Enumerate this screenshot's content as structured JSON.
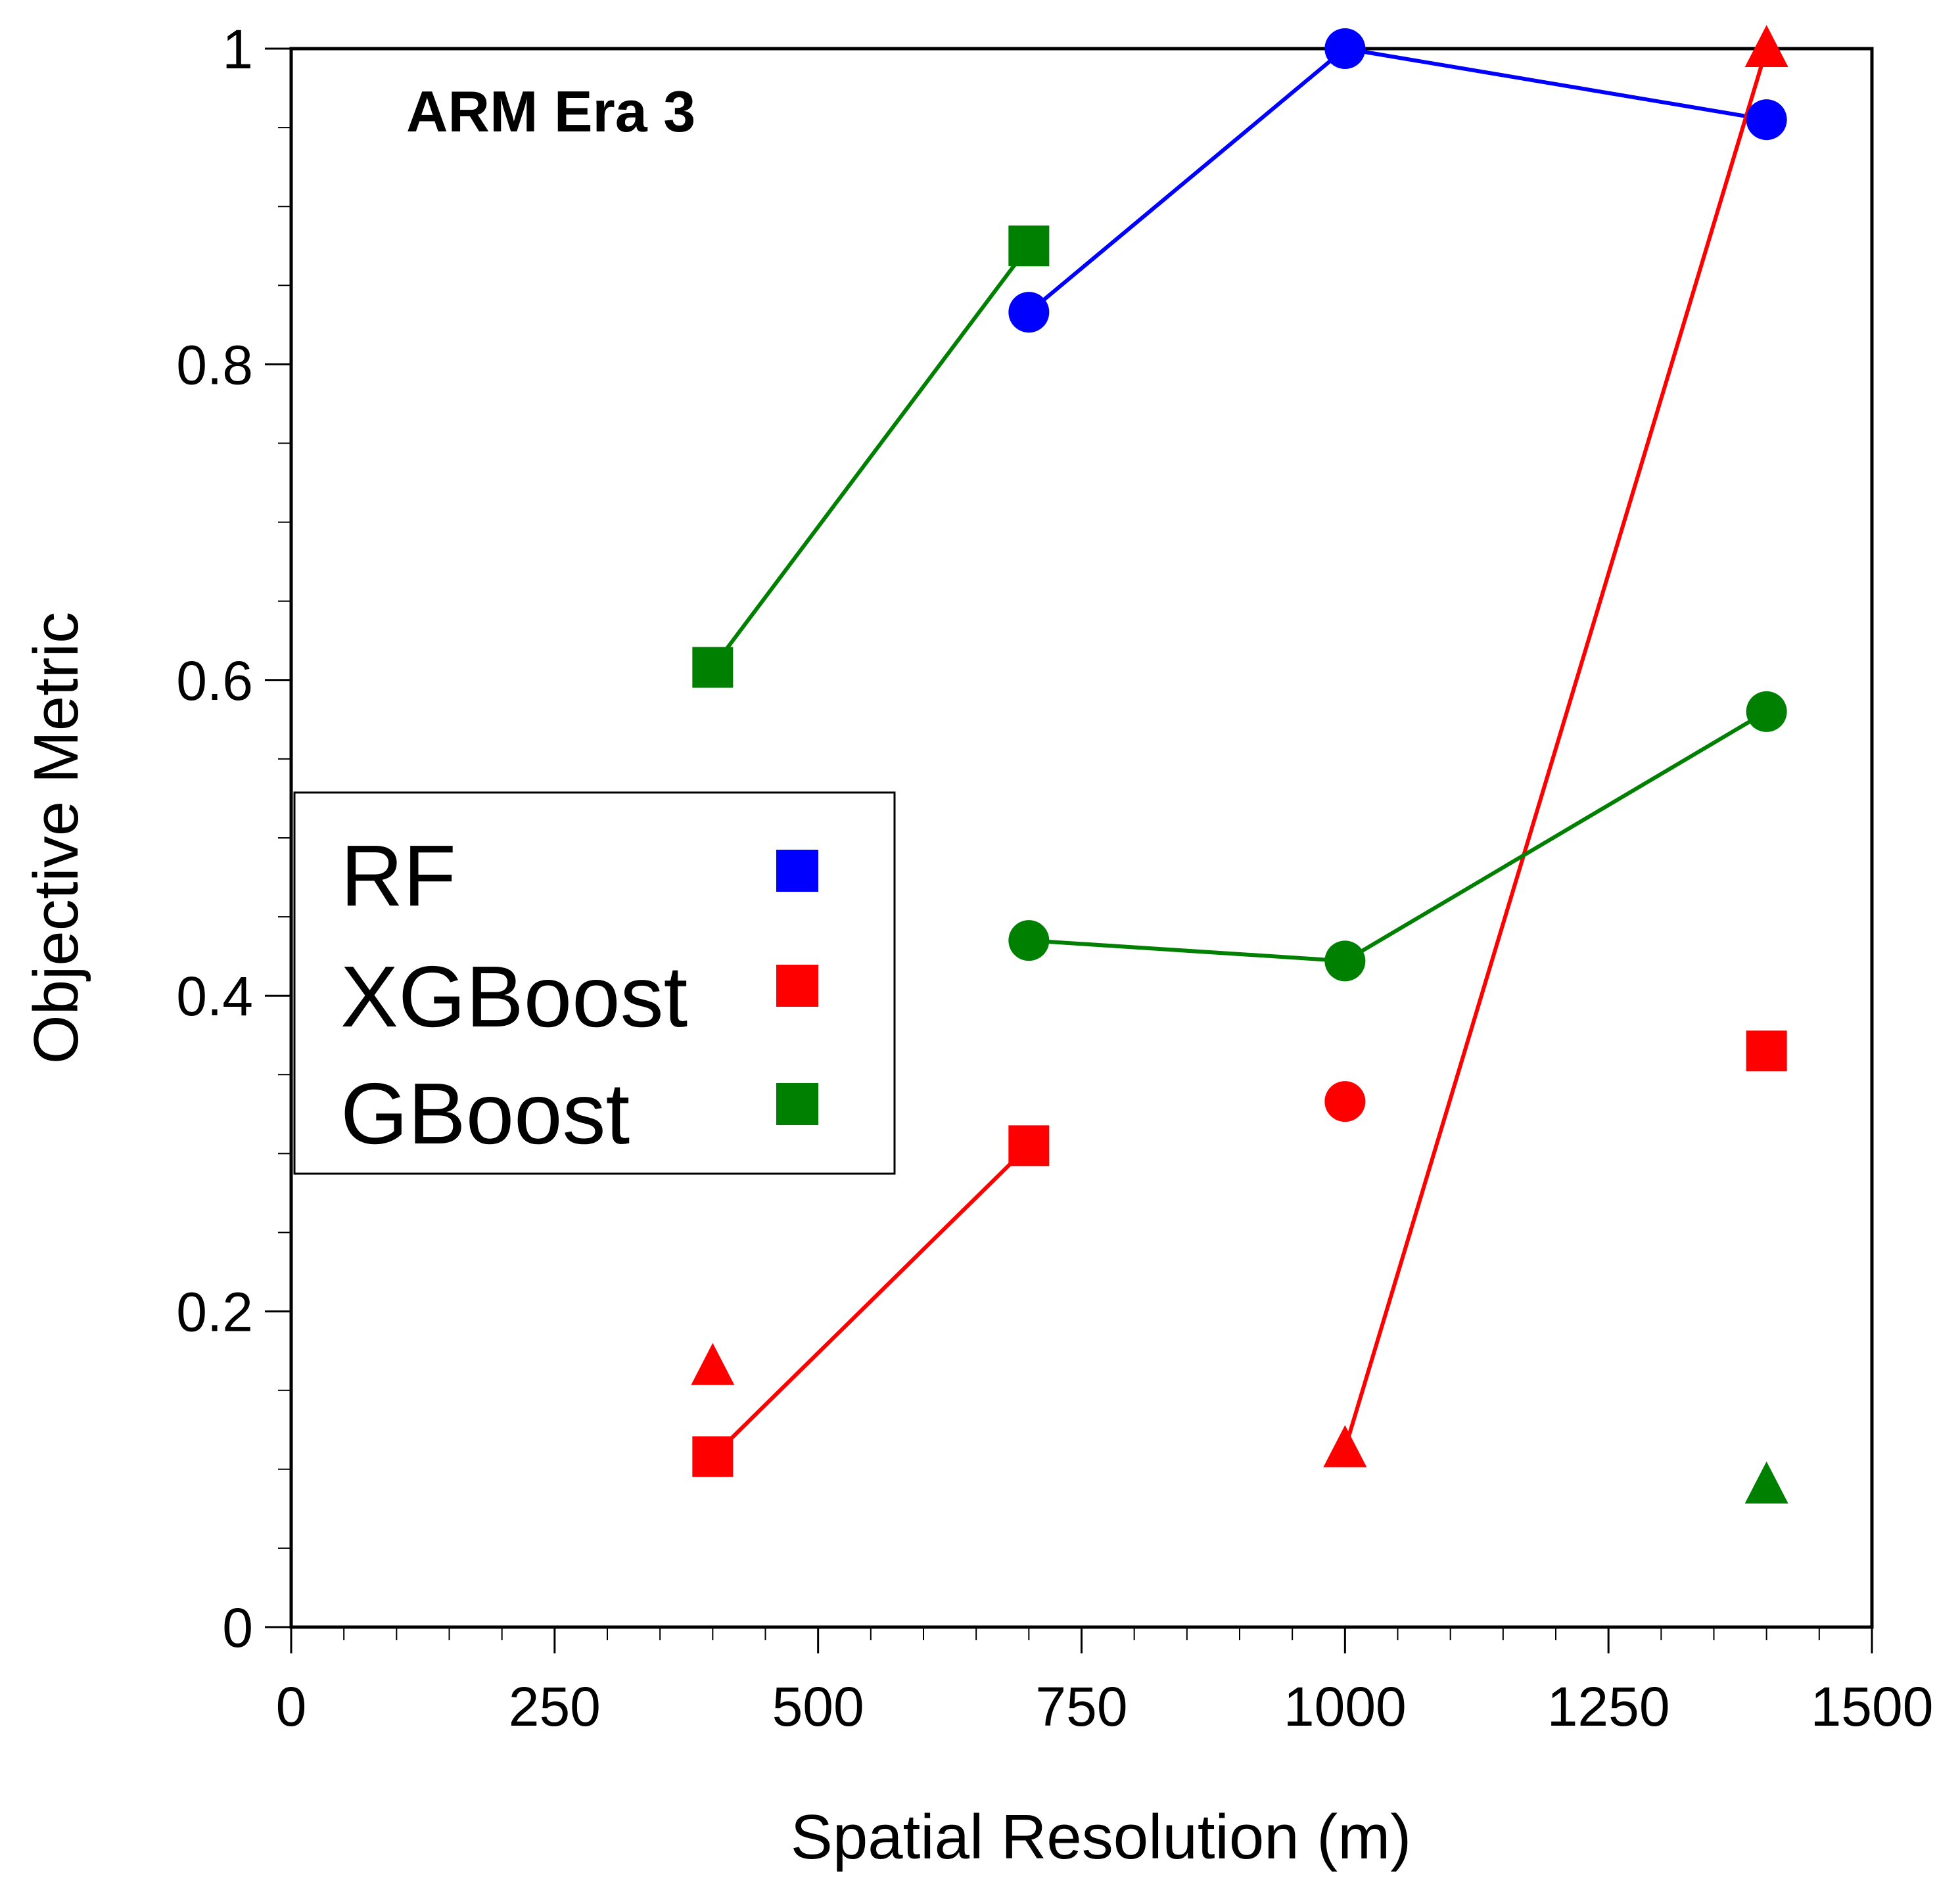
{
  "chart_data": {
    "type": "scatter",
    "title": "ARM Era 3",
    "xlabel": "Spatial Resolution (m)",
    "ylabel": "Objective Metric",
    "xlim": [
      0,
      1500
    ],
    "ylim": [
      0,
      1
    ],
    "x_ticks": [
      0,
      250,
      500,
      750,
      1000,
      1250,
      1500
    ],
    "x_tick_labels": [
      "0",
      "250",
      "500",
      "750",
      "1000",
      "1250",
      "1500"
    ],
    "y_ticks": [
      0,
      0.2,
      0.4,
      0.6,
      0.8,
      1
    ],
    "y_tick_labels": [
      "0",
      "0.2",
      "0.4",
      "0.6",
      "0.8",
      "1"
    ],
    "x_minor_step": 50,
    "y_minor_step": 0.05,
    "grid": false,
    "legend": {
      "placement": "center-left",
      "entries": [
        {
          "label": "RF",
          "color": "#0000ff"
        },
        {
          "label": "XGBoost",
          "color": "#ff0000"
        },
        {
          "label": "GBoost",
          "color": "#008000"
        }
      ]
    },
    "series": [
      {
        "name": "RF",
        "marker": "circle",
        "color": "#0000ff",
        "connected": true,
        "points": [
          {
            "x": 700,
            "y": 0.833
          },
          {
            "x": 1000,
            "y": 1.0
          },
          {
            "x": 1400,
            "y": 0.955
          }
        ]
      },
      {
        "name": "XGBoost",
        "marker": "square",
        "color": "#ff0000",
        "connected": true,
        "points": [
          {
            "x": 400,
            "y": 0.108
          },
          {
            "x": 700,
            "y": 0.305
          }
        ]
      },
      {
        "name": "XGBoost",
        "marker": "square",
        "color": "#ff0000",
        "connected": false,
        "points": [
          {
            "x": 1400,
            "y": 0.365
          }
        ]
      },
      {
        "name": "XGBoost",
        "marker": "circle",
        "color": "#ff0000",
        "connected": false,
        "points": [
          {
            "x": 1000,
            "y": 0.333
          }
        ]
      },
      {
        "name": "XGBoost",
        "marker": "triangle",
        "color": "#ff0000",
        "connected": false,
        "points": [
          {
            "x": 400,
            "y": 0.165
          }
        ]
      },
      {
        "name": "XGBoost",
        "marker": "triangle",
        "color": "#ff0000",
        "connected": true,
        "points": [
          {
            "x": 1000,
            "y": 0.113
          },
          {
            "x": 1400,
            "y": 1.0
          }
        ]
      },
      {
        "name": "GBoost",
        "marker": "square",
        "color": "#008000",
        "connected": true,
        "points": [
          {
            "x": 400,
            "y": 0.608
          },
          {
            "x": 700,
            "y": 0.875
          }
        ]
      },
      {
        "name": "GBoost",
        "marker": "circle",
        "color": "#008000",
        "connected": true,
        "points": [
          {
            "x": 700,
            "y": 0.435
          },
          {
            "x": 1000,
            "y": 0.422
          },
          {
            "x": 1400,
            "y": 0.58
          }
        ]
      },
      {
        "name": "GBoost",
        "marker": "triangle",
        "color": "#008000",
        "connected": false,
        "points": [
          {
            "x": 1400,
            "y": 0.09
          }
        ]
      }
    ]
  }
}
